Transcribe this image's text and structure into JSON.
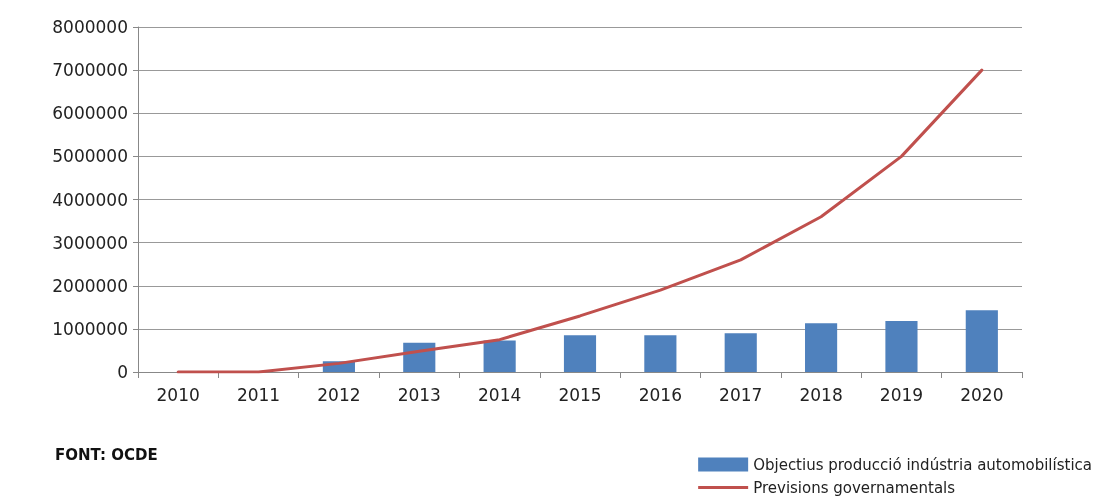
{
  "chart_data": {
    "type": "bar",
    "categories": [
      "2010",
      "2011",
      "2012",
      "2013",
      "2014",
      "2015",
      "2016",
      "2017",
      "2018",
      "2019",
      "2020"
    ],
    "series": [
      {
        "name": "Objectius producció indústria automobilística",
        "color": "#4f81bd",
        "values": [
          0,
          0,
          250000,
          680000,
          730000,
          850000,
          850000,
          900000,
          1130000,
          1180000,
          1430000
        ]
      },
      {
        "name": "Previsions governamentals",
        "type": "line",
        "color": "#c0504d",
        "values": [
          0,
          0,
          200000,
          480000,
          750000,
          1300000,
          1900000,
          2600000,
          3600000,
          5000000,
          7000000
        ]
      }
    ],
    "ylim": [
      0,
      8000000
    ],
    "yticks": [
      0,
      1000000,
      2000000,
      3000000,
      4000000,
      5000000,
      6000000,
      7000000,
      8000000
    ],
    "grid": "y",
    "legend": "bottom right",
    "marker": "none",
    "annotations": [
      "FONT: OCDE"
    ]
  }
}
